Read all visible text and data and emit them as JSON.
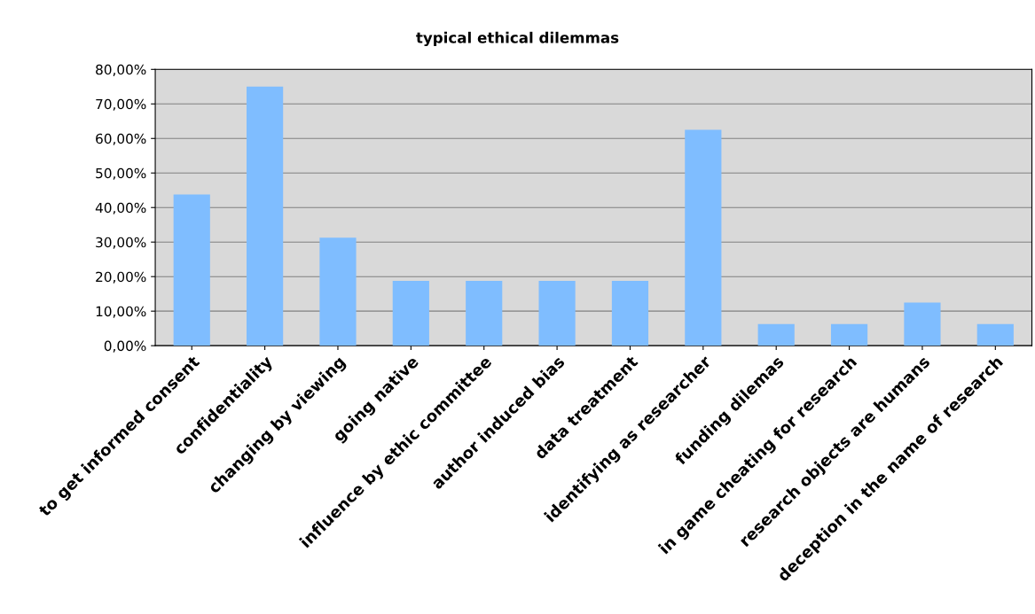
{
  "chart_data": {
    "type": "bar",
    "title": "typical ethical dilemmas",
    "categories": [
      "to get informed consent",
      "confidentiality",
      "changing by viewing",
      "going native",
      "influence by ethic committee",
      "author induced bias",
      "data treatment",
      "identifying as researcher",
      "funding dilemas",
      "in game cheating for research",
      "research objects are humans",
      "deception in the name of research"
    ],
    "values": [
      43.75,
      75,
      31.25,
      18.75,
      18.75,
      18.75,
      18.75,
      62.5,
      6.25,
      6.25,
      12.5,
      6.25
    ],
    "color": "#7fbdff",
    "ylim": [
      0,
      80
    ],
    "yticks": [
      {
        "value": 0,
        "label": "0,00%"
      },
      {
        "value": 10,
        "label": "10,00%"
      },
      {
        "value": 20,
        "label": "20,00%"
      },
      {
        "value": 30,
        "label": "30,00%"
      },
      {
        "value": 40,
        "label": "40,00%"
      },
      {
        "value": 50,
        "label": "50,00%"
      },
      {
        "value": 60,
        "label": "60,00%"
      },
      {
        "value": 70,
        "label": "70,00%"
      },
      {
        "value": 80,
        "label": "80,00%"
      }
    ],
    "grid": "y",
    "legend": false
  }
}
